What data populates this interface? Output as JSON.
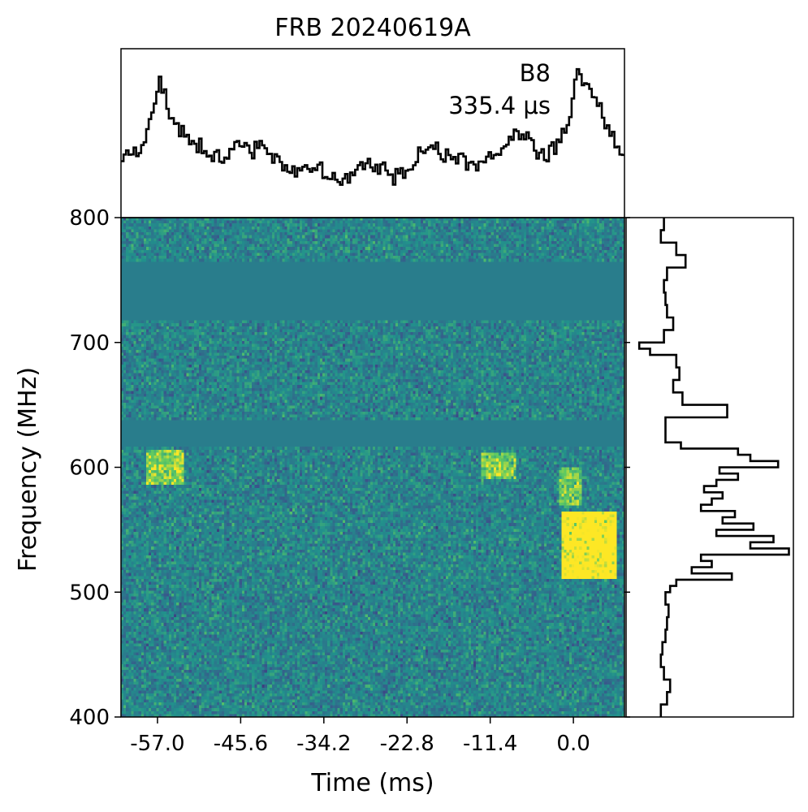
{
  "chart_data": {
    "type": "heatmap",
    "title": "FRB 20240619A",
    "annotation": {
      "label": "B8",
      "resolution": "335.4 μs"
    },
    "xlabel": "Time (ms)",
    "ylabel": "Frequency (MHz)",
    "xlim": [
      -62.0,
      7.0
    ],
    "ylim": [
      400,
      800
    ],
    "x_ticks": [
      -57.0,
      -45.6,
      -34.2,
      -22.8,
      -11.4,
      0.0
    ],
    "x_tick_labels": [
      "-57.0",
      "-45.6",
      "-34.2",
      "-22.8",
      "-11.4",
      "0.0"
    ],
    "y_ticks": [
      400,
      500,
      600,
      700,
      800
    ],
    "y_tick_labels": [
      "400",
      "500",
      "600",
      "700",
      "800"
    ],
    "colormap": "viridis",
    "masked_bands_mhz": [
      [
        717,
        733
      ],
      [
        735,
        765
      ],
      [
        617,
        637
      ]
    ],
    "bright_regions": [
      {
        "t": [
          -1.5,
          6.0
        ],
        "f": [
          510,
          565
        ],
        "level": 1.0
      },
      {
        "t": [
          -58.5,
          -53.5
        ],
        "f": [
          585,
          615
        ],
        "level": 0.55
      },
      {
        "t": [
          -12.5,
          -8.0
        ],
        "f": [
          590,
          612
        ],
        "level": 0.5
      },
      {
        "t": [
          -2.0,
          1.0
        ],
        "f": [
          570,
          600
        ],
        "level": 0.45
      }
    ],
    "time_series": {
      "x": [
        -62.0,
        -60.0,
        -58.5,
        -57.0,
        -56.5,
        -55.5,
        -54.0,
        -52.0,
        -50.0,
        -48.0,
        -46.0,
        -44.0,
        -42.0,
        -40.0,
        -38.0,
        -36.0,
        -34.0,
        -32.0,
        -30.0,
        -28.0,
        -26.0,
        -24.0,
        -22.0,
        -20.0,
        -18.0,
        -16.0,
        -14.0,
        -12.0,
        -10.0,
        -8.0,
        -6.0,
        -4.0,
        -2.0,
        -0.5,
        0.5,
        1.5,
        2.5,
        3.5,
        4.5,
        5.5,
        6.5
      ],
      "y": [
        0.28,
        0.36,
        0.45,
        0.82,
        0.92,
        0.62,
        0.52,
        0.42,
        0.35,
        0.3,
        0.44,
        0.38,
        0.42,
        0.3,
        0.22,
        0.25,
        0.18,
        0.14,
        0.24,
        0.3,
        0.22,
        0.2,
        0.26,
        0.42,
        0.35,
        0.32,
        0.28,
        0.3,
        0.35,
        0.48,
        0.42,
        0.32,
        0.4,
        0.55,
        0.96,
        0.88,
        0.8,
        0.7,
        0.55,
        0.45,
        0.35
      ]
    },
    "frequency_spectrum": {
      "f": [
        400,
        410,
        420,
        430,
        440,
        450,
        460,
        470,
        480,
        490,
        500,
        505,
        510,
        515,
        520,
        525,
        530,
        535,
        540,
        545,
        550,
        555,
        560,
        565,
        570,
        575,
        580,
        585,
        590,
        595,
        600,
        605,
        610,
        615,
        620,
        625,
        630,
        635,
        640,
        650,
        660,
        670,
        680,
        690,
        695,
        700,
        710,
        720,
        730,
        740,
        750,
        760,
        770,
        780,
        790,
        800
      ],
      "power": [
        0.02,
        0.06,
        0.08,
        0.04,
        0.02,
        0.03,
        0.05,
        0.06,
        0.07,
        0.05,
        0.08,
        0.12,
        0.48,
        0.22,
        0.35,
        0.28,
        0.85,
        0.6,
        0.75,
        0.38,
        0.62,
        0.42,
        0.5,
        0.28,
        0.35,
        0.42,
        0.3,
        0.38,
        0.52,
        0.4,
        0.78,
        0.6,
        0.52,
        0.15,
        0.05,
        0.05,
        0.05,
        0.05,
        0.45,
        0.16,
        0.1,
        0.14,
        0.12,
        -0.05,
        -0.12,
        0.04,
        0.1,
        0.06,
        0.05,
        0.04,
        0.06,
        0.18,
        0.12,
        0.02,
        0.04,
        0.02
      ]
    }
  }
}
